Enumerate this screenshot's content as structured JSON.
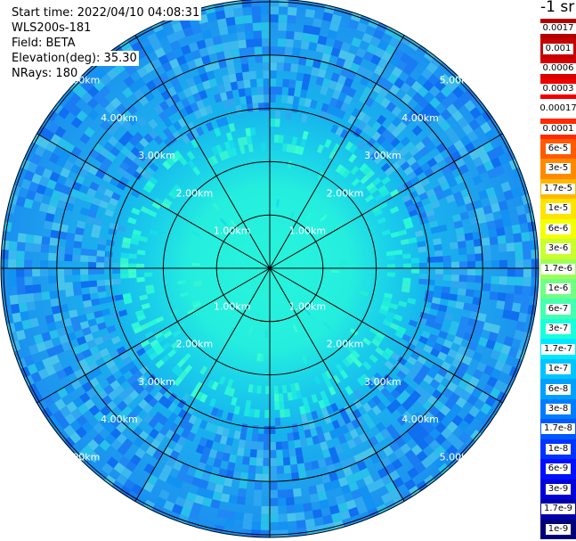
{
  "info": {
    "start_time": "Start time: 2022/04/10 04:08:31",
    "instrument": "WLS200s-181",
    "field": "Field: BETA",
    "elevation": "Elevation(deg): 35.30",
    "nrays": "NRays: 180"
  },
  "range_rings": [
    {
      "range_km": 1,
      "label": "1.00km"
    },
    {
      "range_km": 2,
      "label": "2.00km"
    },
    {
      "range_km": 3,
      "label": "3.00km"
    },
    {
      "range_km": 4,
      "label": "4.00km"
    },
    {
      "range_km": 5,
      "label": "5.00km"
    }
  ],
  "max_range_km": 5.05,
  "azimuth_step_deg": 30,
  "colorbar": {
    "unit_label": "-1 sr",
    "entries": [
      {
        "label": "0.0017",
        "color": "#b30000"
      },
      {
        "label": "0.001",
        "color": "#c40000"
      },
      {
        "label": "0.0006",
        "color": "#d80000"
      },
      {
        "label": "0.0003",
        "color": "#ee0000"
      },
      {
        "label": "0.00017",
        "color": "#ffffff"
      },
      {
        "label": "0.0001",
        "color": "#ff2a00"
      },
      {
        "label": "6e-5",
        "color": "#ff5a00"
      },
      {
        "label": "3e-5",
        "color": "#ff8a00"
      },
      {
        "label": "1.7e-5",
        "color": "#ffb800"
      },
      {
        "label": "1e-5",
        "color": "#ffe400"
      },
      {
        "label": "6e-6",
        "color": "#f4ff00"
      },
      {
        "label": "3e-6",
        "color": "#c8ff2c"
      },
      {
        "label": "1.7e-6",
        "color": "#9cff58"
      },
      {
        "label": "1e-6",
        "color": "#70ff84"
      },
      {
        "label": "6e-7",
        "color": "#44ffb0"
      },
      {
        "label": "3e-7",
        "color": "#18ffdc"
      },
      {
        "label": "1.7e-7",
        "color": "#00e8ff"
      },
      {
        "label": "1e-7",
        "color": "#00c4ff"
      },
      {
        "label": "6e-8",
        "color": "#00a0ff"
      },
      {
        "label": "3e-8",
        "color": "#007cff"
      },
      {
        "label": "1.7e-8",
        "color": "#0058ff"
      },
      {
        "label": "1e-8",
        "color": "#0034ff"
      },
      {
        "label": "6e-9",
        "color": "#0010ff"
      },
      {
        "label": "3e-9",
        "color": "#0000d8"
      },
      {
        "label": "1.7e-9",
        "color": "#0000a8"
      },
      {
        "label": "1e-9",
        "color": "#000078"
      }
    ]
  }
}
